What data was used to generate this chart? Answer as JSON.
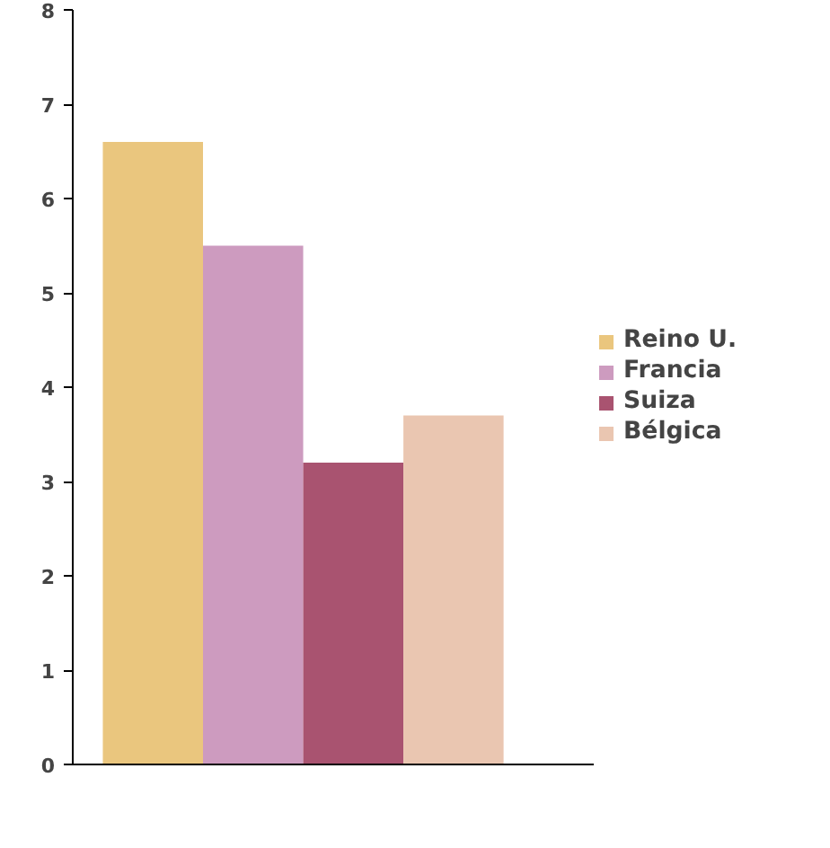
{
  "chart_data": {
    "type": "bar",
    "categories": [
      null
    ],
    "series": [
      {
        "name": "Reino U.",
        "color": "#e8c070",
        "values": [
          6.6
        ]
      },
      {
        "name": "Francia",
        "color": "#c890b8",
        "values": [
          5.5
        ]
      },
      {
        "name": "Suiza",
        "color": "#a04060",
        "values": [
          3.2
        ]
      },
      {
        "name": "Bélgica",
        "color": "#e8c0a8",
        "values": [
          3.7
        ]
      }
    ],
    "ylim": [
      0,
      8
    ],
    "yticks": [
      0,
      1,
      2,
      3,
      4,
      5,
      6,
      7,
      8
    ],
    "legend": "right"
  }
}
